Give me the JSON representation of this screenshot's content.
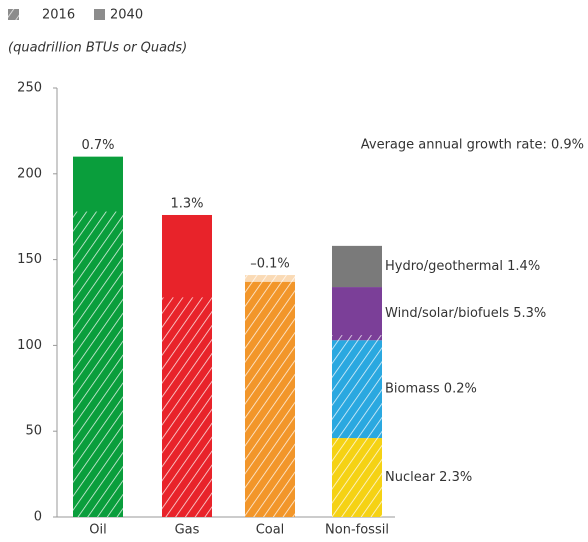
{
  "chart_data": {
    "type": "bar",
    "subtitle": "(quadrillion BTUs or Quads)",
    "annotation": "Average annual growth rate: 0.9%",
    "categories": [
      "Oil",
      "Gas",
      "Coal",
      "Non-fossil"
    ],
    "colors": [
      "#0a9e3c",
      "#e8232a",
      "#f2962a",
      null
    ],
    "legend_color": "#8c8c8c",
    "series": [
      {
        "name": "2016",
        "pattern": "hatched",
        "values": [
          178,
          128,
          141,
          106
        ]
      },
      {
        "name": "2040",
        "pattern": "solid",
        "values": [
          210,
          176,
          137,
          null
        ]
      }
    ],
    "growth_labels": [
      "0.7%",
      "1.3%",
      "–0.1%",
      null
    ],
    "segments": [
      {
        "name": "Nuclear 2.3%",
        "color": "#f5d214",
        "value": 46
      },
      {
        "name": "Biomass 0.2%",
        "color": "#2aa8e0",
        "value": 57
      },
      {
        "name": "Wind/solar/biofuels 5.3%",
        "color": "#7b3f98",
        "value": 31
      },
      {
        "name": "Hydro/geothermal 1.4%",
        "color": "#7a7a7a",
        "value": 24
      }
    ],
    "ylim": [
      0,
      250
    ],
    "yticks": [
      0,
      50,
      100,
      150,
      200,
      250
    ]
  }
}
